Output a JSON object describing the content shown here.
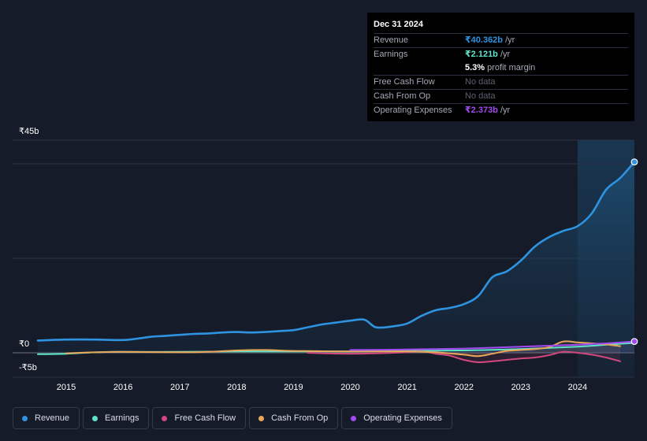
{
  "tooltip": {
    "date": "Dec 31 2024",
    "rows": [
      {
        "label": "Revenue",
        "value": "₹40.362b",
        "unit": " /yr",
        "color": "#2e93e0"
      },
      {
        "label": "Earnings",
        "value": "₹2.121b",
        "unit": " /yr",
        "color": "#5fe3c8"
      },
      {
        "label": "",
        "value": "5.3%",
        "unit": " profit margin",
        "color": "#ffffff"
      },
      {
        "label": "Free Cash Flow",
        "value": "No data",
        "unit": "",
        "color": "#5d6272"
      },
      {
        "label": "Cash From Op",
        "value": "No data",
        "unit": "",
        "color": "#5d6272"
      },
      {
        "label": "Operating Expenses",
        "value": "₹2.373b",
        "unit": " /yr",
        "color": "#a24af0"
      }
    ]
  },
  "legend": [
    {
      "label": "Revenue",
      "color": "#2e93e0"
    },
    {
      "label": "Earnings",
      "color": "#5fe3c8"
    },
    {
      "label": "Free Cash Flow",
      "color": "#d1487f"
    },
    {
      "label": "Cash From Op",
      "color": "#e8a75a"
    },
    {
      "label": "Operating Expenses",
      "color": "#a24af0"
    }
  ],
  "chart_data": {
    "type": "line",
    "title": "",
    "xlabel": "",
    "ylabel": "",
    "y_tick_labels": [
      "₹45b",
      "₹0",
      "-₹5b"
    ],
    "x_tick_labels": [
      "2015",
      "2016",
      "2017",
      "2018",
      "2019",
      "2020",
      "2021",
      "2022",
      "2023",
      "2024"
    ],
    "xlim": [
      2014.5,
      2025.0
    ],
    "ylim": [
      -5,
      45
    ],
    "highlight_from": 2024.0,
    "series": [
      {
        "name": "Revenue",
        "color": "#2e93e0",
        "fill": true,
        "end_marker": true,
        "x": [
          2014.5,
          2015.0,
          2015.5,
          2016.0,
          2016.25,
          2016.5,
          2016.75,
          2017.0,
          2017.25,
          2017.5,
          2017.75,
          2018.0,
          2018.25,
          2018.5,
          2018.75,
          2019.0,
          2019.25,
          2019.5,
          2019.75,
          2020.0,
          2020.25,
          2020.45,
          2020.75,
          2021.0,
          2021.25,
          2021.5,
          2021.75,
          2022.0,
          2022.25,
          2022.5,
          2022.75,
          2023.0,
          2023.25,
          2023.5,
          2023.75,
          2024.0,
          2024.25,
          2024.5,
          2024.75,
          2025.0
        ],
        "values": [
          2.6,
          2.8,
          2.8,
          2.7,
          3.0,
          3.4,
          3.6,
          3.8,
          4.0,
          4.1,
          4.3,
          4.4,
          4.3,
          4.4,
          4.6,
          4.8,
          5.4,
          6.0,
          6.4,
          6.8,
          7.0,
          5.4,
          5.6,
          6.2,
          7.8,
          9.0,
          9.5,
          10.3,
          12.0,
          16.0,
          17.2,
          19.5,
          22.5,
          24.5,
          25.8,
          26.8,
          29.5,
          34.5,
          37.0,
          40.4
        ]
      },
      {
        "name": "Earnings",
        "color": "#5fe3c8",
        "fill": false,
        "end_marker": false,
        "x": [
          2014.5,
          2015.0,
          2015.5,
          2016.0,
          2017.0,
          2018.0,
          2019.0,
          2020.0,
          2021.0,
          2022.0,
          2023.0,
          2024.0,
          2024.5,
          2025.0
        ],
        "values": [
          -0.3,
          -0.2,
          0.1,
          0.2,
          0.2,
          0.3,
          0.3,
          0.3,
          0.4,
          0.5,
          0.8,
          1.3,
          1.7,
          2.1
        ]
      },
      {
        "name": "Free Cash Flow",
        "color": "#d1487f",
        "fill": false,
        "end_marker": false,
        "x": [
          2019.25,
          2019.5,
          2020.0,
          2020.5,
          2021.0,
          2021.25,
          2021.5,
          2021.75,
          2022.0,
          2022.25,
          2022.5,
          2022.75,
          2023.0,
          2023.25,
          2023.5,
          2023.75,
          2024.0,
          2024.25,
          2024.5,
          2024.75
        ],
        "values": [
          0.0,
          -0.1,
          -0.2,
          -0.1,
          0.1,
          0.3,
          -0.2,
          -0.6,
          -1.5,
          -2.0,
          -1.8,
          -1.5,
          -1.2,
          -1.0,
          -0.5,
          0.2,
          0.0,
          -0.4,
          -1.0,
          -1.8
        ]
      },
      {
        "name": "Cash From Op",
        "color": "#e8a75a",
        "fill": false,
        "end_marker": false,
        "x": [
          2015.0,
          2015.5,
          2016.0,
          2017.0,
          2017.5,
          2018.0,
          2018.5,
          2019.0,
          2020.0,
          2021.0,
          2021.5,
          2022.0,
          2022.25,
          2022.5,
          2022.75,
          2023.0,
          2023.25,
          2023.5,
          2023.75,
          2024.0,
          2024.25,
          2024.5,
          2024.75
        ],
        "values": [
          -0.1,
          0.1,
          0.2,
          0.1,
          0.2,
          0.5,
          0.6,
          0.4,
          0.3,
          0.3,
          0.1,
          -0.4,
          -0.7,
          -0.2,
          0.4,
          0.6,
          0.8,
          1.2,
          2.4,
          2.2,
          2.0,
          1.8,
          1.4
        ]
      },
      {
        "name": "Operating Expenses",
        "color": "#a24af0",
        "fill": false,
        "end_marker": true,
        "x": [
          2020.0,
          2021.0,
          2022.0,
          2023.0,
          2023.5,
          2024.0,
          2024.5,
          2025.0
        ],
        "values": [
          0.6,
          0.7,
          0.9,
          1.3,
          1.5,
          1.7,
          2.0,
          2.4
        ]
      }
    ]
  }
}
